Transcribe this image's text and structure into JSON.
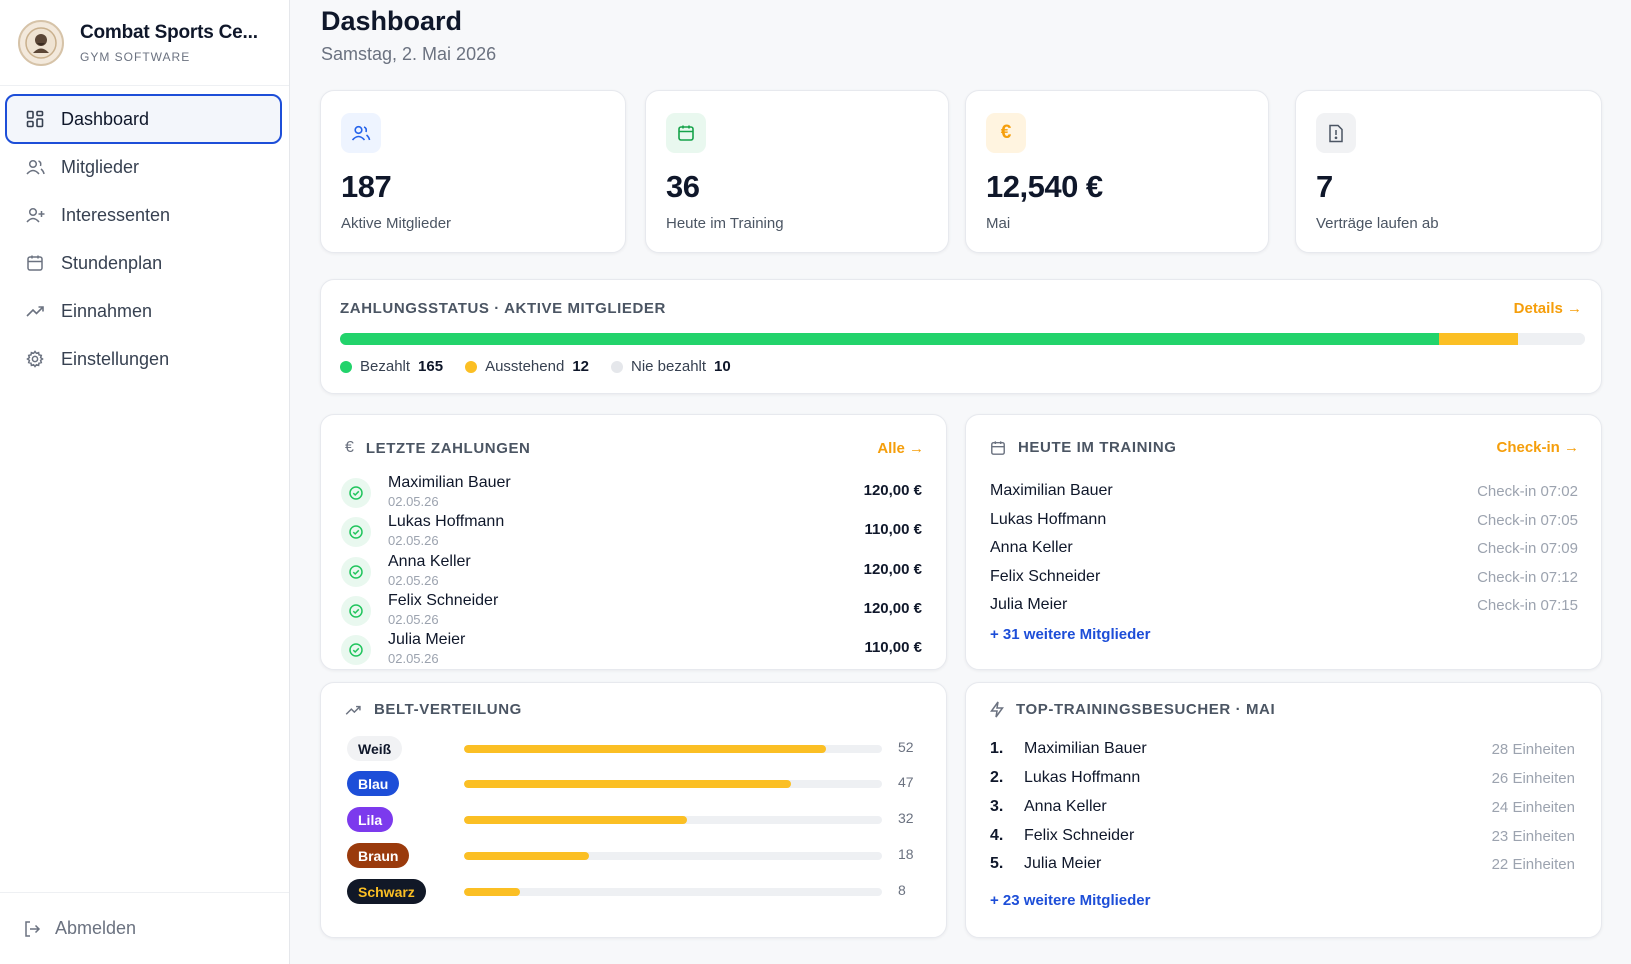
{
  "sidebar": {
    "brand_name": "Combat Sports Ce...",
    "brand_sub": "GYM SOFTWARE",
    "items": [
      {
        "label": "Dashboard",
        "icon": "grid-icon"
      },
      {
        "label": "Mitglieder",
        "icon": "users-icon"
      },
      {
        "label": "Interessenten",
        "icon": "user-plus-icon"
      },
      {
        "label": "Stundenplan",
        "icon": "calendar-icon"
      },
      {
        "label": "Einnahmen",
        "icon": "trending-up-icon"
      },
      {
        "label": "Einstellungen",
        "icon": "gear-icon"
      }
    ],
    "logout_label": "Abmelden"
  },
  "header": {
    "title": "Dashboard",
    "date": "Samstag, 2. Mai 2026"
  },
  "stats": [
    {
      "value": "187",
      "label": "Aktive Mitglieder",
      "icon": "users-icon",
      "color": "#2563eb",
      "bg": "#eef4ff"
    },
    {
      "value": "36",
      "label": "Heute im Training",
      "icon": "calendar-icon",
      "color": "#16a34a",
      "bg": "#e9f8ef"
    },
    {
      "value": "12,540 €",
      "label": "Mai",
      "icon": "euro-icon",
      "color": "#f59e0b",
      "bg": "#fff4e0"
    },
    {
      "value": "7",
      "label": "Verträge laufen ab",
      "icon": "alert-file-icon",
      "color": "#4b5563",
      "bg": "#f1f2f4"
    }
  ],
  "payment_status": {
    "title": "ZAHLUNGSSTATUS · AKTIVE MITGLIEDER",
    "details_link": "Details →",
    "paid_label": "Bezahlt",
    "paid": 165,
    "pending_label": "Ausstehend",
    "pending": 12,
    "never_label": "Nie bezahlt",
    "never": 10,
    "colors": {
      "paid": "#22d36b",
      "pending": "#fbbf24",
      "never": "#eef0f3"
    }
  },
  "payments": {
    "title": "LETZTE ZAHLUNGEN",
    "link": "Alle →",
    "rows": [
      {
        "name": "Maximilian Bauer",
        "date": "02.05.26",
        "amount": "120,00 €"
      },
      {
        "name": "Lukas Hoffmann",
        "date": "02.05.26",
        "amount": "110,00 €"
      },
      {
        "name": "Anna Keller",
        "date": "02.05.26",
        "amount": "120,00 €"
      },
      {
        "name": "Felix Schneider",
        "date": "02.05.26",
        "amount": "120,00 €"
      },
      {
        "name": "Julia Meier",
        "date": "02.05.26",
        "amount": "110,00 €"
      }
    ]
  },
  "training": {
    "title": "HEUTE IM TRAINING",
    "link": "Check-in →",
    "rows": [
      {
        "name": "Maximilian Bauer",
        "time": "Check-in 07:02"
      },
      {
        "name": "Lukas Hoffmann",
        "time": "Check-in 07:05"
      },
      {
        "name": "Anna Keller",
        "time": "Check-in 07:09"
      },
      {
        "name": "Felix Schneider",
        "time": "Check-in 07:12"
      },
      {
        "name": "Julia Meier",
        "time": "Check-in 07:15"
      }
    ],
    "more": "+ 31 weitere Mitglieder"
  },
  "belts": {
    "title": "BELT-VERTEILUNG",
    "max": 60,
    "rows": [
      {
        "label": "Weiß",
        "count": 52,
        "bg": "#f1f2f4",
        "fg": "#0f172a"
      },
      {
        "label": "Blau",
        "count": 47,
        "bg": "#1d4ed8",
        "fg": "#ffffff"
      },
      {
        "label": "Lila",
        "count": 32,
        "bg": "#7c3aed",
        "fg": "#ffffff"
      },
      {
        "label": "Braun",
        "count": 18,
        "bg": "#9a3a0c",
        "fg": "#ffffff"
      },
      {
        "label": "Schwarz",
        "count": 8,
        "bg": "#111827",
        "fg": "#fbbf24"
      }
    ]
  },
  "top_visitors": {
    "title": "TOP-TRAININGSBESUCHER · MAI",
    "rows": [
      {
        "rank": "1.",
        "name": "Maximilian Bauer",
        "units": "28 Einheiten"
      },
      {
        "rank": "2.",
        "name": "Lukas Hoffmann",
        "units": "26 Einheiten"
      },
      {
        "rank": "3.",
        "name": "Anna Keller",
        "units": "24 Einheiten"
      },
      {
        "rank": "4.",
        "name": "Felix Schneider",
        "units": "23 Einheiten"
      },
      {
        "rank": "5.",
        "name": "Julia Meier",
        "units": "22 Einheiten"
      }
    ],
    "more": "+ 23 weitere Mitglieder"
  }
}
